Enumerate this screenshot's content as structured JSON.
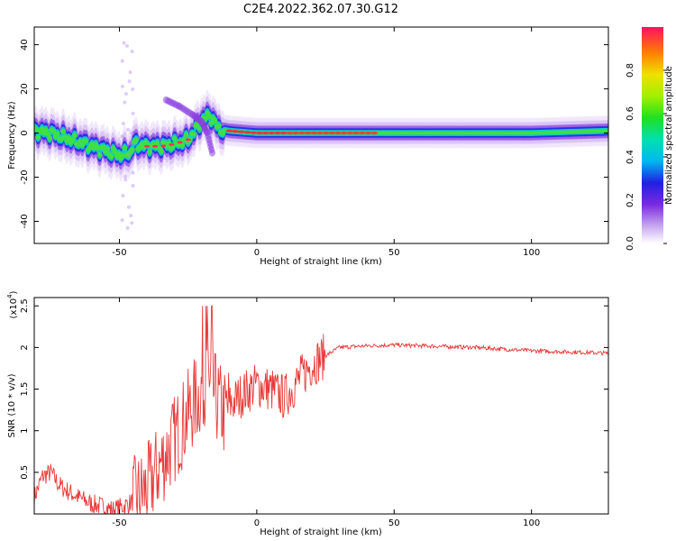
{
  "title": "C2E4.2022.362.07.30.G12",
  "colors": {
    "snr_line": "#e83a3a",
    "axis": "#000000"
  },
  "chart_data": [
    {
      "type": "heatmap",
      "title": "C2E4.2022.362.07.30.G12",
      "xlabel": "Height of straight line (km)",
      "ylabel": "Frequency (Hz)",
      "xlim": [
        -81,
        128
      ],
      "ylim": [
        -50,
        48
      ],
      "x_ticks": [
        -50,
        0,
        50,
        100
      ],
      "y_ticks": [
        -40,
        -20,
        0,
        20,
        40
      ],
      "colorbar": {
        "label": "Normalized spectral amplitude",
        "range": [
          0.0,
          1.0
        ],
        "ticks": [
          0.0,
          0.2,
          0.4,
          0.6,
          0.8
        ]
      },
      "ridge": [
        {
          "x": -81,
          "y": 1
        },
        {
          "x": -75,
          "y": 0
        },
        {
          "x": -70,
          "y": -2
        },
        {
          "x": -65,
          "y": -4
        },
        {
          "x": -60,
          "y": -6
        },
        {
          "x": -55,
          "y": -8
        },
        {
          "x": -50,
          "y": -10
        },
        {
          "x": -46,
          "y": -9
        },
        {
          "x": -45,
          "y": -5
        },
        {
          "x": -40,
          "y": -6
        },
        {
          "x": -35,
          "y": -6
        },
        {
          "x": -30,
          "y": -5
        },
        {
          "x": -25,
          "y": -3
        },
        {
          "x": -22,
          "y": 2
        },
        {
          "x": -20,
          "y": 6
        },
        {
          "x": -17,
          "y": 8
        },
        {
          "x": -14,
          "y": 2
        },
        {
          "x": -10,
          "y": 1
        },
        {
          "x": 0,
          "y": 0
        },
        {
          "x": 10,
          "y": 0
        },
        {
          "x": 50,
          "y": 0
        },
        {
          "x": 100,
          "y": 0
        },
        {
          "x": 128,
          "y": 1
        }
      ],
      "secondary_branch": [
        {
          "x": -33,
          "y": 15
        },
        {
          "x": -28,
          "y": 12
        },
        {
          "x": -23,
          "y": 8
        },
        {
          "x": -20,
          "y": 5
        },
        {
          "x": -18,
          "y": 0
        },
        {
          "x": -16,
          "y": -10
        }
      ]
    },
    {
      "type": "line",
      "xlabel": "Height of straight line (km)",
      "ylabel": "SNR (10 * v/v)",
      "y_multiplier_label": "(x10",
      "y_multiplier_exp": "4",
      "y_multiplier_close": ")",
      "xlim": [
        -81,
        128
      ],
      "ylim": [
        0,
        2.6
      ],
      "x_ticks": [
        -50,
        0,
        50,
        100
      ],
      "y_ticks": [
        0.5,
        1.0,
        1.5,
        2.0,
        2.5
      ],
      "series": [
        {
          "values": [
            [
              -81,
              0.2
            ],
            [
              -78,
              0.45
            ],
            [
              -75,
              0.5
            ],
            [
              -72,
              0.35
            ],
            [
              -70,
              0.3
            ],
            [
              -65,
              0.2
            ],
            [
              -60,
              0.12
            ],
            [
              -55,
              0.08
            ],
            [
              -52,
              0.05
            ],
            [
              -48,
              0.1
            ],
            [
              -45,
              0.15
            ],
            [
              -40,
              0.3
            ],
            [
              -35,
              0.6
            ],
            [
              -30,
              0.9
            ],
            [
              -25,
              1.2
            ],
            [
              -20,
              1.5
            ],
            [
              -18,
              1.7
            ],
            [
              -15,
              1.4
            ],
            [
              -12,
              1.2
            ],
            [
              -10,
              1.3
            ],
            [
              -5,
              1.45
            ],
            [
              0,
              1.55
            ],
            [
              5,
              1.5
            ],
            [
              10,
              1.4
            ],
            [
              15,
              1.6
            ],
            [
              20,
              1.8
            ],
            [
              25,
              1.9
            ],
            [
              30,
              2.0
            ],
            [
              40,
              2.02
            ],
            [
              50,
              2.03
            ],
            [
              60,
              2.02
            ],
            [
              70,
              2.01
            ],
            [
              80,
              2.0
            ],
            [
              90,
              1.98
            ],
            [
              100,
              1.96
            ],
            [
              110,
              1.95
            ],
            [
              120,
              1.94
            ],
            [
              128,
              1.93
            ]
          ]
        }
      ]
    }
  ]
}
